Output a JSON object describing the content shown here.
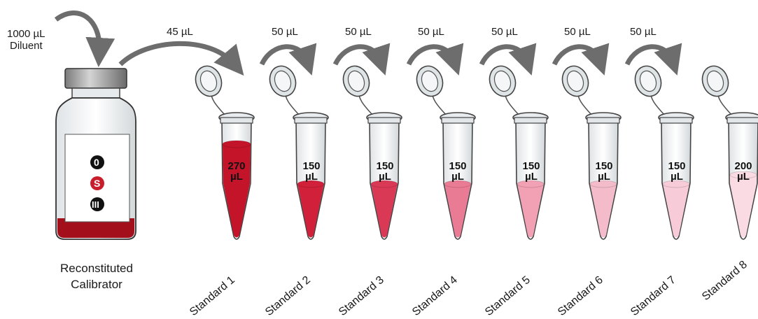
{
  "diluent": {
    "amount": "1000 µL",
    "label": "Diluent"
  },
  "vial": {
    "caption_line1": "Reconstituted",
    "caption_line2": "Calibrator",
    "symbols": [
      "0",
      "S",
      "III"
    ],
    "liquid_color": "#a3101c"
  },
  "transfers": [
    "45 µL",
    "50 µL",
    "50 µL",
    "50 µL",
    "50 µL",
    "50 µL",
    "50 µL"
  ],
  "tubes": [
    {
      "label": "Standard 1",
      "volume": "270",
      "unit": "µL",
      "color": "#c4142a"
    },
    {
      "label": "Standard 2",
      "volume": "150",
      "unit": "µL",
      "color": "#d0203a"
    },
    {
      "label": "Standard 3",
      "volume": "150",
      "unit": "µL",
      "color": "#da3956"
    },
    {
      "label": "Standard 4",
      "volume": "150",
      "unit": "µL",
      "color": "#ea7b95"
    },
    {
      "label": "Standard 5",
      "volume": "150",
      "unit": "µL",
      "color": "#f1a1b3"
    },
    {
      "label": "Standard 6",
      "volume": "150",
      "unit": "µL",
      "color": "#f4bccb"
    },
    {
      "label": "Standard 7",
      "volume": "150",
      "unit": "µL",
      "color": "#f7ccd8"
    },
    {
      "label": "Standard 8",
      "volume": "200",
      "unit": "µL",
      "color": "#fadbe3"
    }
  ]
}
